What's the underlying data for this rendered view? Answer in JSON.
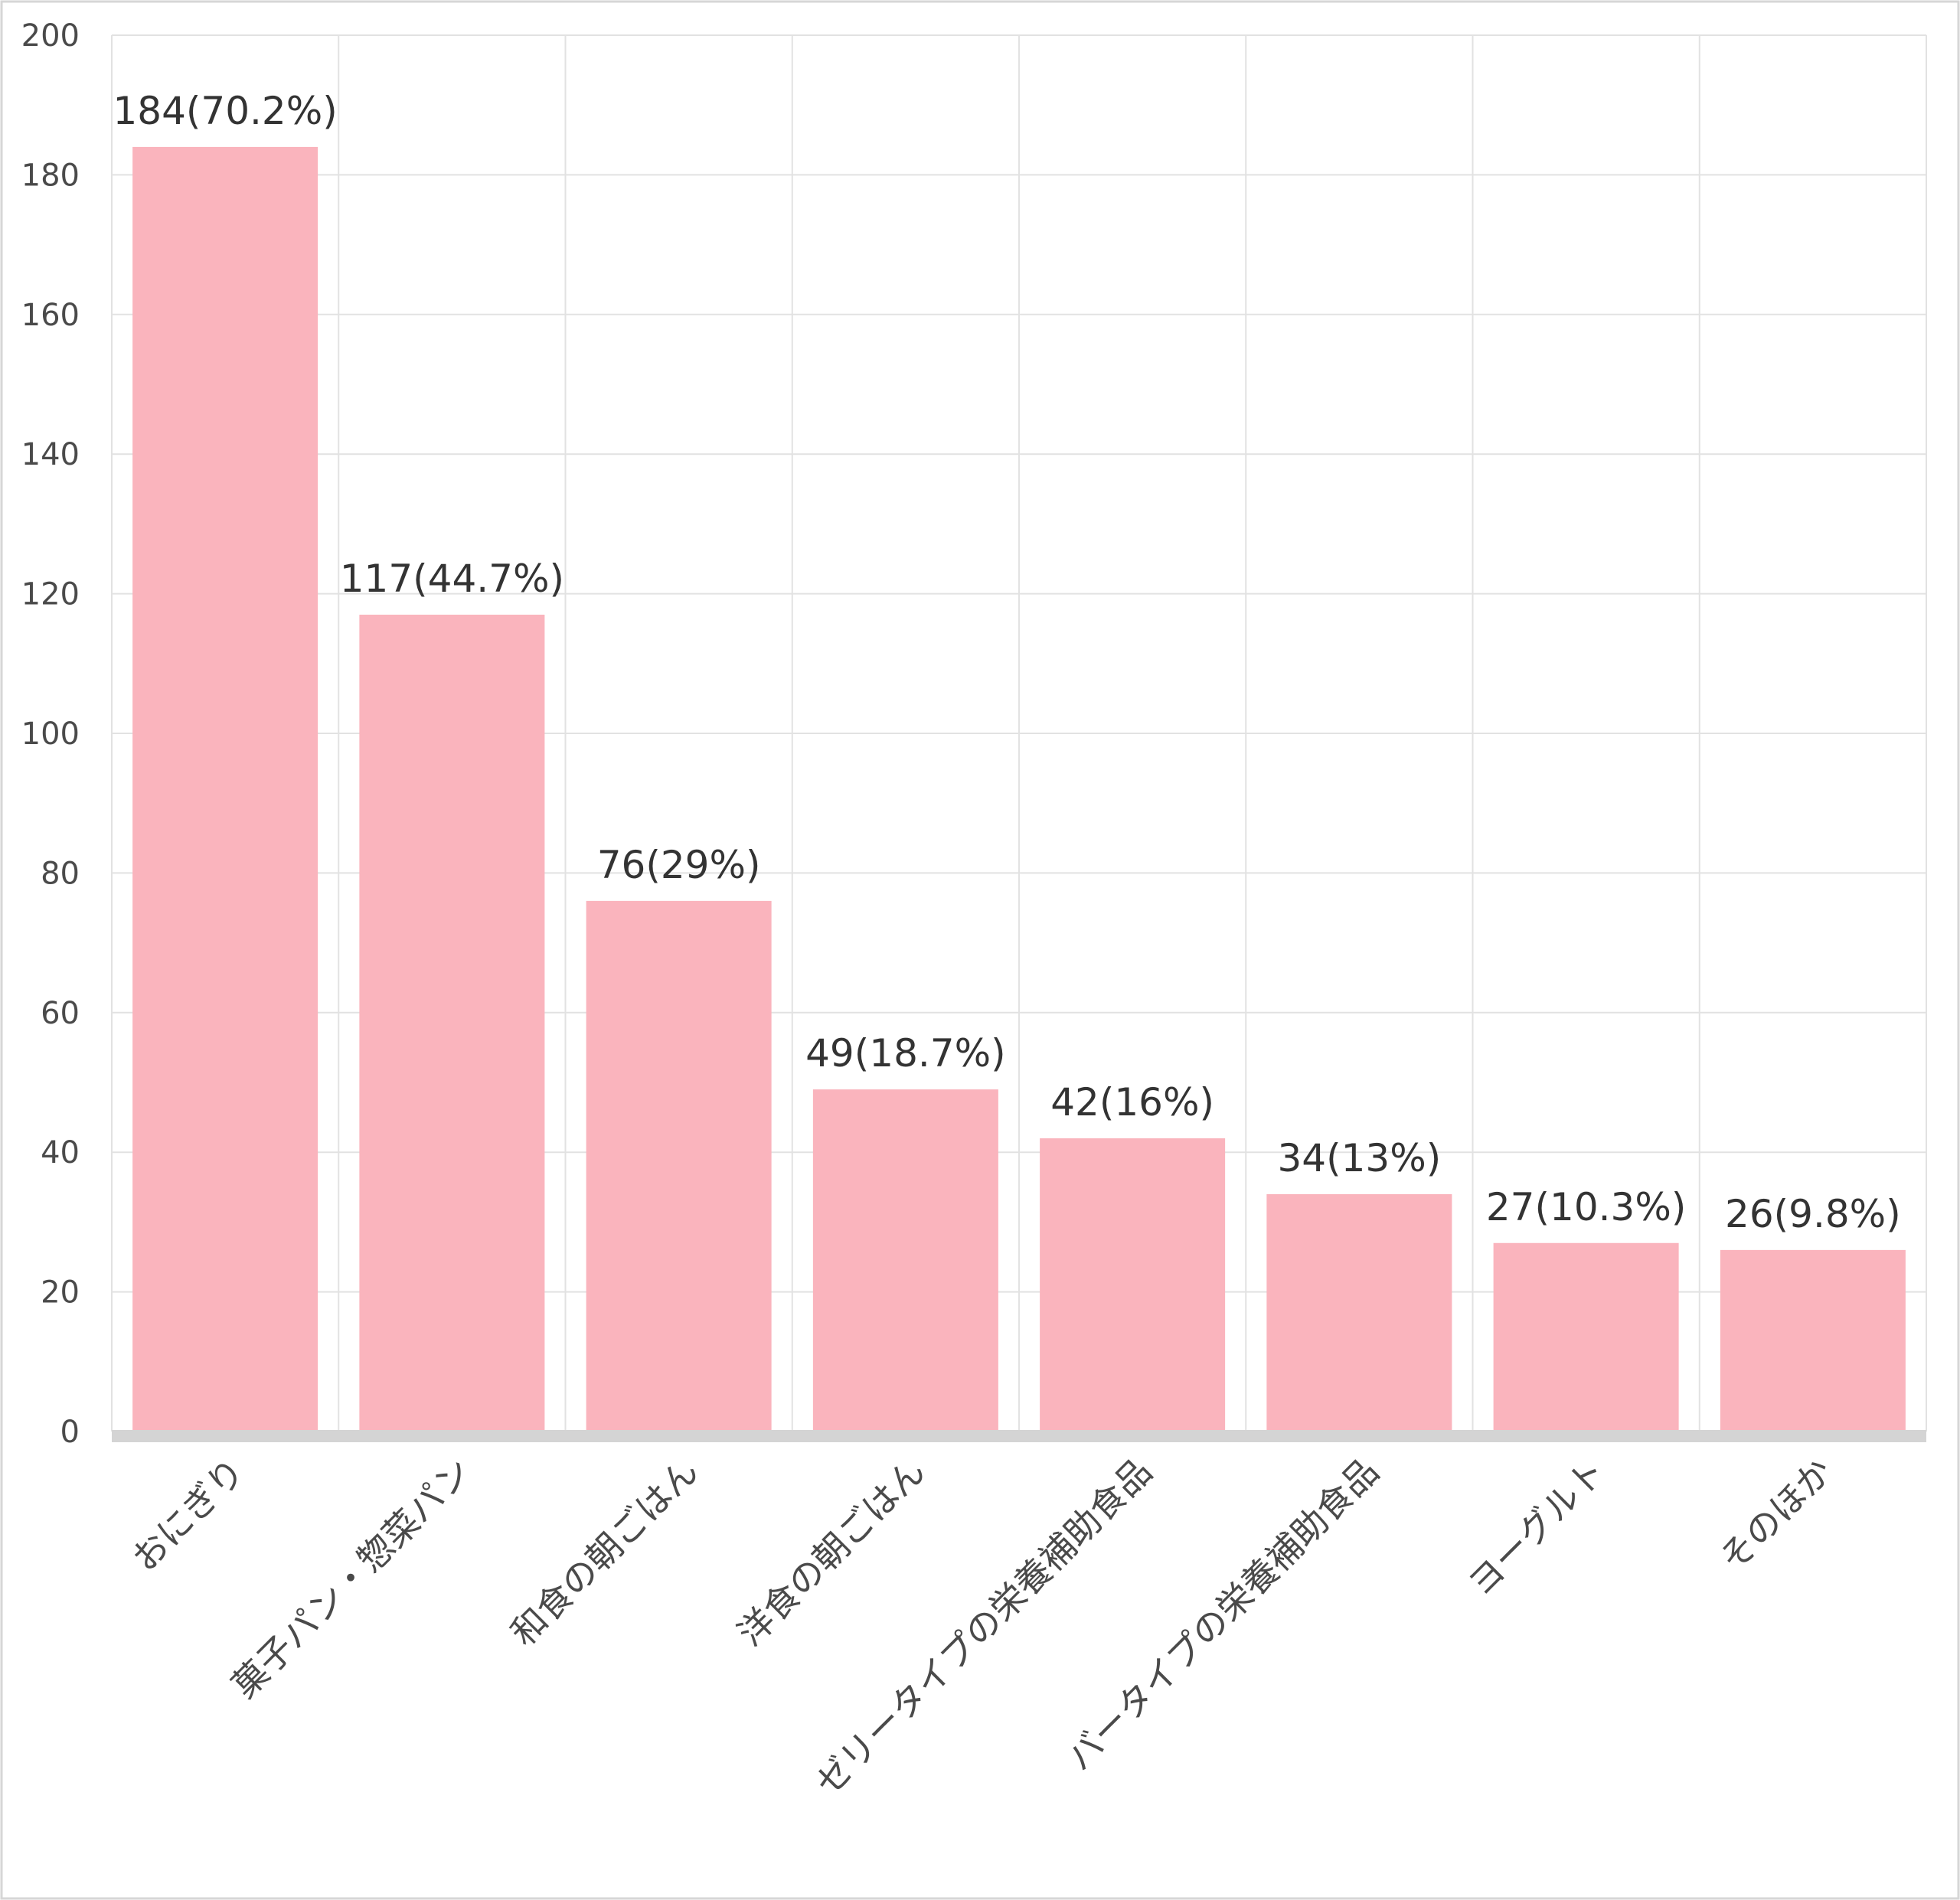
{
  "chart_data": {
    "type": "bar",
    "title": "",
    "xlabel": "",
    "ylabel": "",
    "categories": [
      "おにぎり",
      "菓子パン・惣菜パン",
      "和食の朝ごはん",
      "洋食の朝ごはん",
      "ゼリータイプの栄養補助食品",
      "バータイプの栄養補助食品",
      "ヨーグルト",
      "そのほか"
    ],
    "values": [
      184,
      117,
      76,
      49,
      42,
      34,
      27,
      26
    ],
    "data_labels": [
      "184(70.2%)",
      "117(44.7%)",
      "76(29%)",
      "49(18.7%)",
      "42(16%)",
      "34(13%)",
      "27(10.3%)",
      "26(9.8%)"
    ],
    "ylim": [
      0,
      200
    ],
    "yticks": [
      0,
      20,
      40,
      60,
      80,
      100,
      120,
      140,
      160,
      180,
      200
    ],
    "grid": true,
    "legend": "none",
    "colors": {
      "bar": "#fab4bd",
      "grid": "#e2e2e2",
      "axis": "#d4d4d4",
      "text": "#333333"
    }
  }
}
